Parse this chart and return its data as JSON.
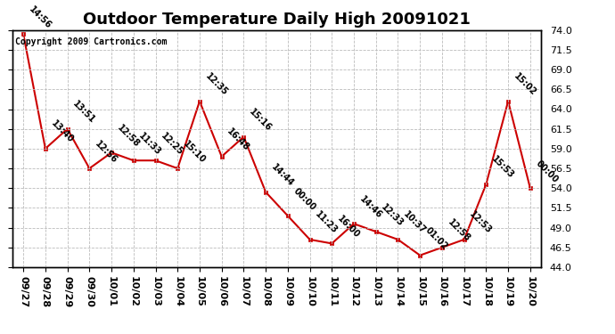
{
  "title": "Outdoor Temperature Daily High 20091021",
  "copyright_text": "Copyright 2009 Cartronics.com",
  "x_labels": [
    "09/27",
    "09/28",
    "09/29",
    "09/30",
    "10/01",
    "10/02",
    "10/03",
    "10/04",
    "10/05",
    "10/06",
    "10/07",
    "10/08",
    "10/09",
    "10/10",
    "10/11",
    "10/12",
    "10/13",
    "10/14",
    "10/15",
    "10/16",
    "10/17",
    "10/18",
    "10/19",
    "10/20"
  ],
  "y_values": [
    73.5,
    59.0,
    61.5,
    56.5,
    58.5,
    57.5,
    57.5,
    56.5,
    65.0,
    58.0,
    60.5,
    53.5,
    50.5,
    47.5,
    47.0,
    49.5,
    48.5,
    47.5,
    45.5,
    46.5,
    47.5,
    54.5,
    65.0,
    54.0
  ],
  "point_labels": [
    "14:56",
    "13:40",
    "13:51",
    "12:56",
    "12:58",
    "11:33",
    "12:25",
    "15:10",
    "12:35",
    "16:48",
    "15:16",
    "14:44",
    "00:00",
    "11:23",
    "16:00",
    "14:46",
    "12:33",
    "10:37",
    "01:02",
    "12:58",
    "12:53",
    "15:53",
    "15:02",
    "00:00"
  ],
  "line_color": "#cc0000",
  "marker_color": "#cc0000",
  "bg_color": "#ffffff",
  "grid_color": "#bbbbbb",
  "ylim_min": 44.0,
  "ylim_max": 74.0,
  "ytick_values": [
    44.0,
    46.5,
    49.0,
    51.5,
    54.0,
    56.5,
    59.0,
    61.5,
    64.0,
    66.5,
    69.0,
    71.5,
    74.0
  ],
  "title_fontsize": 13,
  "label_fontsize": 7,
  "tick_fontsize": 8,
  "copyright_fontsize": 7
}
